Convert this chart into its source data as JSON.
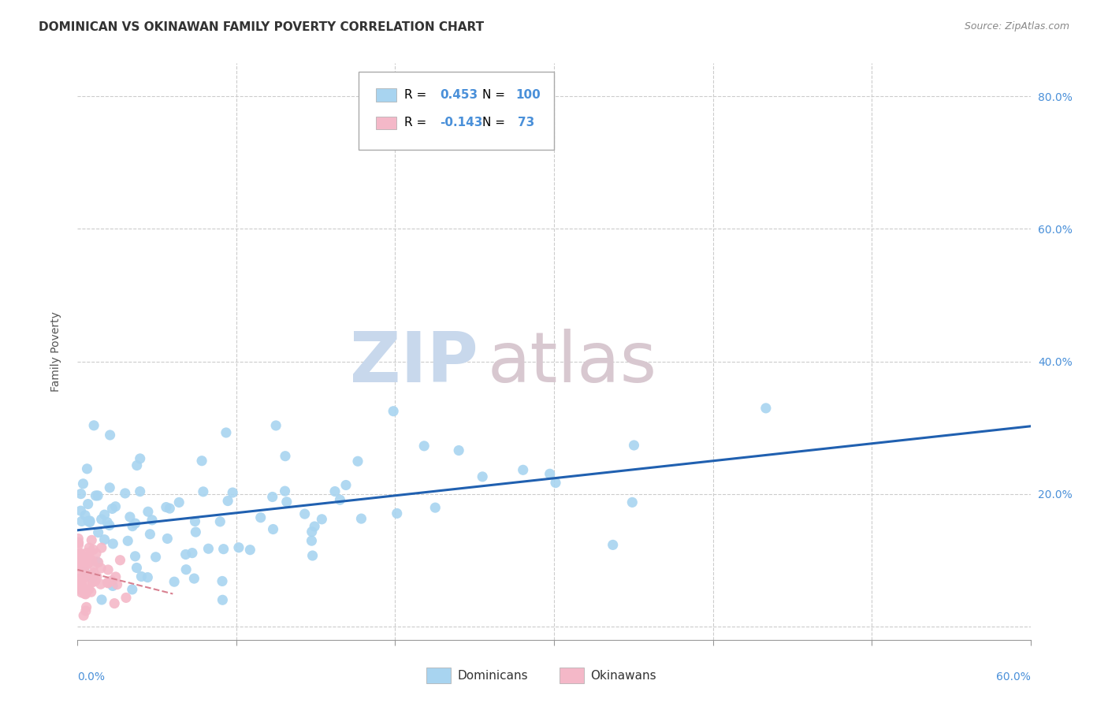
{
  "title": "DOMINICAN VS OKINAWAN FAMILY POVERTY CORRELATION CHART",
  "source": "Source: ZipAtlas.com",
  "ylabel": "Family Poverty",
  "yticks": [
    0.0,
    0.2,
    0.4,
    0.6,
    0.8
  ],
  "ytick_labels": [
    "",
    "20.0%",
    "40.0%",
    "60.0%",
    "80.0%"
  ],
  "xlim": [
    0.0,
    0.6
  ],
  "ylim": [
    -0.02,
    0.85
  ],
  "dominican_R": 0.453,
  "dominican_N": 100,
  "okinawan_R": -0.143,
  "okinawan_N": 73,
  "dominican_color": "#a8d4f0",
  "okinawan_color": "#f4b8c8",
  "dominican_line_color": "#2060b0",
  "okinawan_line_color": "#d88090",
  "watermark_zip": "ZIP",
  "watermark_atlas": "atlas",
  "watermark_color_zip": "#c8d8ec",
  "watermark_color_atlas": "#d8c8d0",
  "background_color": "#ffffff",
  "grid_color": "#cccccc",
  "title_color": "#333333",
  "title_fontsize": 11,
  "tick_color": "#4a90d9",
  "tick_fontsize": 10,
  "legend_r_color": "#000000",
  "legend_val_color": "#4a90d9"
}
